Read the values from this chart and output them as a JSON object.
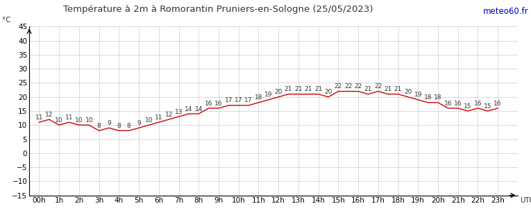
{
  "title": "Température à 2m à Romorantin Pruniers-en-Sologne (25/05/2023)",
  "watermark": "meteo60.fr",
  "ylabel": "°C",
  "xlabel": "UTC",
  "temperatures": [
    11,
    12,
    10,
    11,
    10,
    10,
    8,
    9,
    8,
    8,
    9,
    10,
    11,
    12,
    13,
    14,
    14,
    16,
    16,
    17,
    17,
    17,
    18,
    19,
    20,
    21,
    21,
    21,
    21,
    20,
    22,
    22,
    22,
    21,
    22,
    21,
    21,
    20,
    19,
    18,
    18,
    16,
    16,
    15,
    16,
    15,
    16
  ],
  "hours": [
    "00h",
    "1h",
    "2h",
    "3h",
    "4h",
    "5h",
    "6h",
    "7h",
    "8h",
    "9h",
    "10h",
    "11h",
    "12h",
    "13h",
    "14h",
    "15h",
    "16h",
    "17h",
    "18h",
    "19h",
    "20h",
    "21h",
    "22h",
    "23h"
  ],
  "ylim": [
    -15,
    45
  ],
  "yticks": [
    -15,
    -10,
    -5,
    0,
    5,
    10,
    15,
    20,
    25,
    30,
    35,
    40,
    45
  ],
  "line_color": "#cc0000",
  "grid_color": "#cccccc",
  "text_color": "#333333",
  "title_color": "#333333",
  "watermark_color": "#0000cc",
  "background_color": "#ffffff",
  "title_fontsize": 9.5,
  "label_fontsize": 7.5,
  "tick_fontsize": 7.5,
  "temp_label_fontsize": 6.5
}
